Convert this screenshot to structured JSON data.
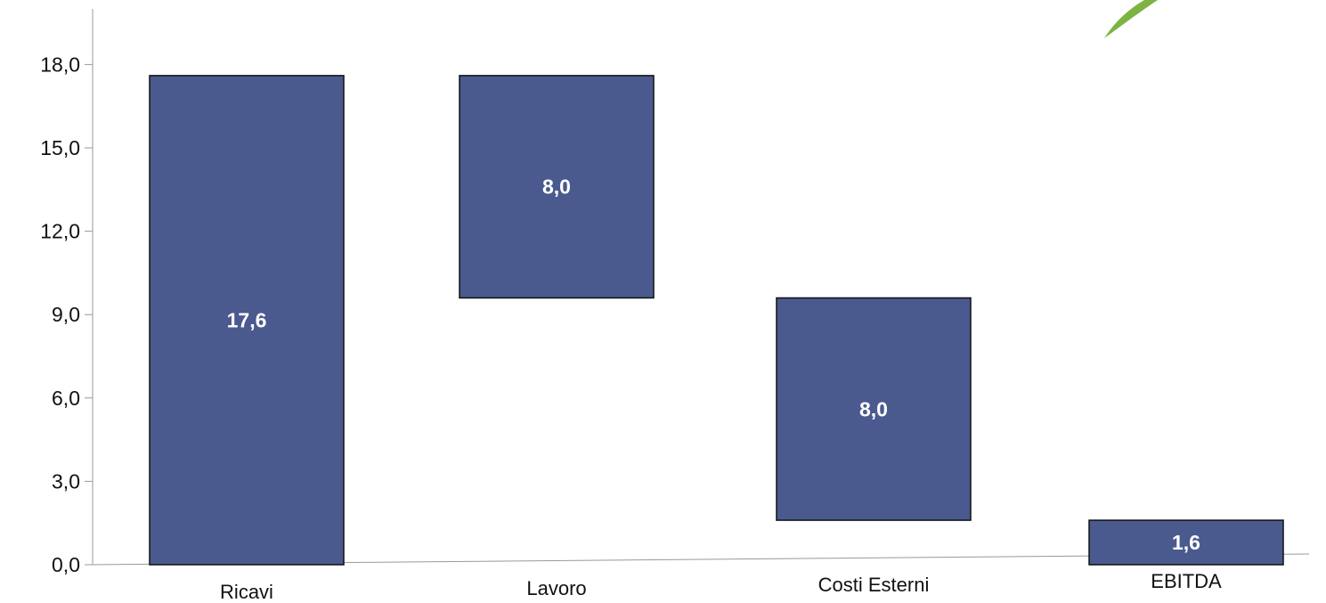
{
  "chart_data": {
    "type": "bar",
    "subtype": "waterfall",
    "categories": [
      "Ricavi",
      "Lavoro",
      "Costi Esterni",
      "EBITDA"
    ],
    "values": [
      17.6,
      8.0,
      8.0,
      1.6
    ],
    "bar_ranges": [
      [
        0,
        17.6
      ],
      [
        9.6,
        17.6
      ],
      [
        1.6,
        9.6
      ],
      [
        0,
        1.6
      ]
    ],
    "data_labels": [
      "17,6",
      "8,0",
      "8,0",
      "1,6"
    ],
    "yticks": [
      "0,0",
      "3,0",
      "6,0",
      "9,0",
      "12,0",
      "15,0",
      "18,0"
    ],
    "ytick_values": [
      0,
      3,
      6,
      9,
      12,
      15,
      18
    ],
    "ylim": [
      0,
      20
    ],
    "grid": false,
    "bar_color": "#4a5a8e",
    "leaf_color": "#7cb342"
  }
}
